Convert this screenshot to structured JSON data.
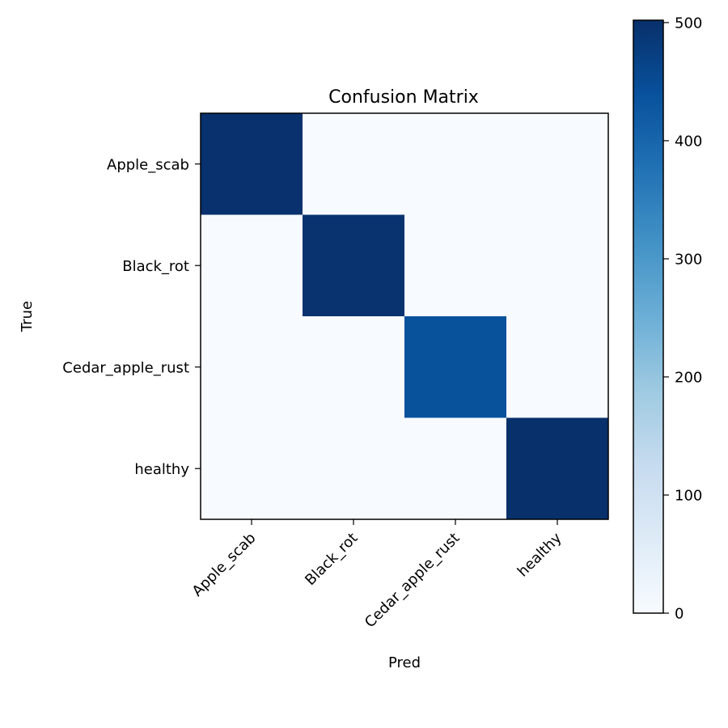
{
  "chart_data": {
    "type": "heatmap",
    "title": "Confusion Matrix",
    "xlabel": "Pred",
    "ylabel": "True",
    "x_categories": [
      "Apple_scab",
      "Black_rot",
      "Cedar_apple_rust",
      "healthy"
    ],
    "y_categories": [
      "Apple_scab",
      "Black_rot",
      "Cedar_apple_rust",
      "healthy"
    ],
    "matrix": [
      [
        500,
        0,
        0,
        0
      ],
      [
        0,
        497,
        0,
        0
      ],
      [
        0,
        0,
        440,
        0
      ],
      [
        0,
        0,
        0,
        502
      ]
    ],
    "colormap": "Blues",
    "colorbar": {
      "range": [
        0,
        502
      ],
      "ticks": [
        0,
        100,
        200,
        300,
        400,
        500
      ],
      "position": "right"
    },
    "x_tick_rotation_deg": 45,
    "grid": false
  }
}
